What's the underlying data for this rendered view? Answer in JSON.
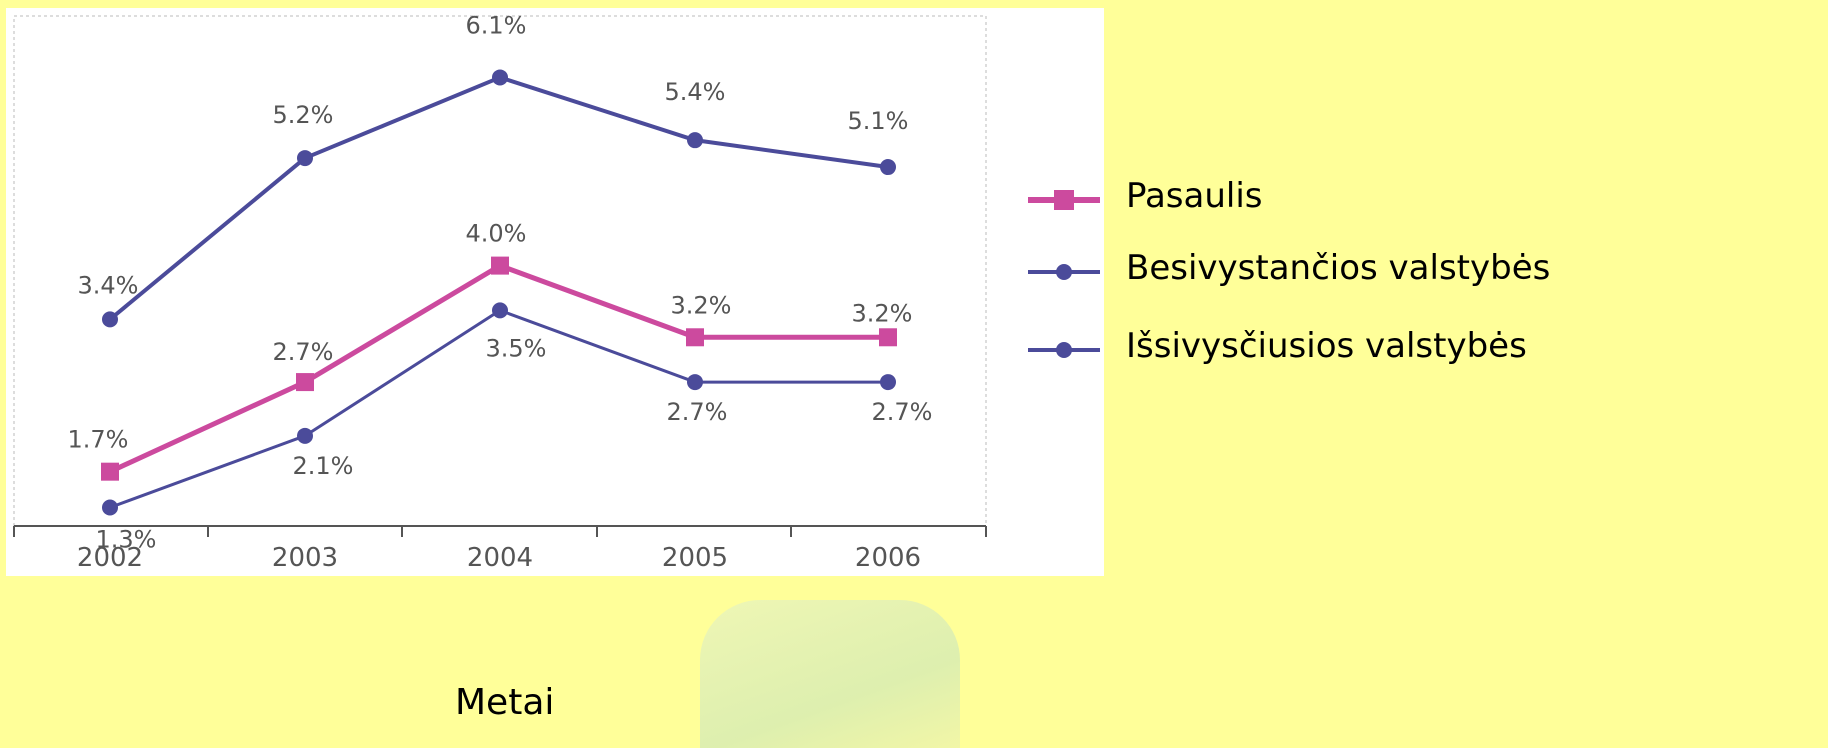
{
  "chart_data": {
    "type": "line",
    "categories": [
      "2002",
      "2003",
      "2004",
      "2005",
      "2006"
    ],
    "series": [
      {
        "name": "Besivystančios valstybės",
        "values": [
          3.4,
          5.2,
          6.1,
          5.4,
          5.1
        ],
        "labels": [
          "3.4%",
          "5.2%",
          "6.1%",
          "5.4%",
          "5.1%"
        ],
        "color": "#4B4B9A",
        "marker": "circle"
      },
      {
        "name": "Pasaulis",
        "values": [
          1.7,
          2.7,
          4.0,
          3.2,
          3.2
        ],
        "labels": [
          "1.7%",
          "2.7%",
          "4.0%",
          "3.2%",
          "3.2%"
        ],
        "color": "#CC4A9E",
        "marker": "square"
      },
      {
        "name": "Išsivysčiusios valstybės",
        "values": [
          1.3,
          2.1,
          3.5,
          2.7,
          2.7
        ],
        "labels": [
          "1.3%",
          "2.1%",
          "3.5%",
          "2.7%",
          "2.7%"
        ],
        "color": "#4B4B9A",
        "marker": "circle"
      }
    ],
    "xlabel": "Metai",
    "ylabel": "",
    "ylim": [
      0,
      7
    ],
    "grid": false,
    "legend_position": "right"
  },
  "legend": [
    {
      "label": "Pasaulis",
      "color": "#CC4A9E",
      "marker": "square"
    },
    {
      "label": "Besivystančios valstybės",
      "color": "#4B4B9A",
      "marker": "circle"
    },
    {
      "label": "Išsivysčiusios valstybės",
      "color": "#4B4B9A",
      "marker": "circle"
    }
  ],
  "colors": {
    "background": "#FFFF99",
    "plot_background": "#FFFFFF",
    "axis": "#555555"
  }
}
